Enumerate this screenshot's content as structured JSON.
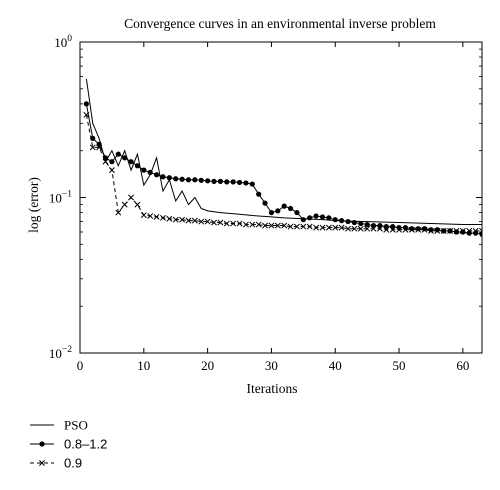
{
  "chart_data": {
    "type": "line",
    "title": "Convergence curves in an environmental inverse problem",
    "xlabel": "Iterations",
    "ylabel": "log (error)",
    "xlim": [
      0,
      63
    ],
    "ylim": [
      0.01,
      1.0
    ],
    "yscale": "log",
    "xticks": [
      0,
      10,
      20,
      30,
      40,
      50,
      60
    ],
    "xtick_labels": [
      "0",
      "10",
      "20",
      "30",
      "40",
      "50",
      "60"
    ],
    "yticks": [
      1,
      0.1,
      0.01
    ],
    "ytick_labels": [
      {
        "base": "10",
        "exp": "0"
      },
      {
        "base": "10",
        "exp": "−1"
      },
      {
        "base": "10",
        "exp": "−2"
      }
    ],
    "grid": false,
    "legend_position": "below-left",
    "series": [
      {
        "name": "PSO",
        "color": "#000000",
        "marker": "none",
        "dash": "solid",
        "x": [
          1,
          2,
          3,
          4,
          5,
          6,
          7,
          8,
          9,
          10,
          11,
          12,
          13,
          14,
          15,
          16,
          17,
          18,
          19,
          20,
          22,
          25,
          28,
          30,
          32,
          35,
          38,
          40,
          45,
          50,
          55,
          60,
          63
        ],
        "y": [
          0.58,
          0.3,
          0.24,
          0.17,
          0.2,
          0.16,
          0.2,
          0.15,
          0.19,
          0.12,
          0.14,
          0.18,
          0.11,
          0.13,
          0.095,
          0.11,
          0.09,
          0.1,
          0.085,
          0.082,
          0.08,
          0.078,
          0.076,
          0.075,
          0.074,
          0.073,
          0.072,
          0.071,
          0.07,
          0.069,
          0.068,
          0.067,
          0.067
        ]
      },
      {
        "name": "0.8–1.2",
        "color": "#000000",
        "marker": "circle",
        "dash": "solid",
        "x": [
          1,
          2,
          3,
          4,
          5,
          6,
          7,
          8,
          9,
          10,
          11,
          12,
          13,
          14,
          15,
          16,
          17,
          18,
          19,
          20,
          21,
          22,
          23,
          24,
          25,
          26,
          27,
          28,
          29,
          30,
          31,
          32,
          33,
          34,
          35,
          36,
          37,
          38,
          39,
          40,
          41,
          42,
          43,
          44,
          45,
          46,
          47,
          48,
          49,
          50,
          51,
          52,
          53,
          54,
          55,
          56,
          57,
          58,
          59,
          60,
          61,
          62,
          63
        ],
        "y": [
          0.4,
          0.24,
          0.22,
          0.18,
          0.17,
          0.19,
          0.18,
          0.17,
          0.16,
          0.15,
          0.145,
          0.14,
          0.136,
          0.134,
          0.132,
          0.131,
          0.13,
          0.13,
          0.129,
          0.128,
          0.127,
          0.127,
          0.126,
          0.126,
          0.125,
          0.124,
          0.122,
          0.105,
          0.092,
          0.08,
          0.082,
          0.088,
          0.085,
          0.08,
          0.072,
          0.074,
          0.076,
          0.075,
          0.074,
          0.072,
          0.071,
          0.07,
          0.069,
          0.068,
          0.067,
          0.066,
          0.066,
          0.065,
          0.065,
          0.064,
          0.064,
          0.063,
          0.063,
          0.063,
          0.062,
          0.062,
          0.061,
          0.061,
          0.06,
          0.06,
          0.059,
          0.059,
          0.058
        ]
      },
      {
        "name": "0.9",
        "color": "#000000",
        "marker": "x",
        "dash": "dashed",
        "x": [
          1,
          2,
          3,
          4,
          5,
          6,
          7,
          8,
          9,
          10,
          11,
          12,
          13,
          14,
          15,
          16,
          17,
          18,
          19,
          20,
          21,
          22,
          23,
          24,
          25,
          26,
          27,
          28,
          29,
          30,
          31,
          32,
          33,
          34,
          35,
          36,
          37,
          38,
          39,
          40,
          41,
          42,
          43,
          44,
          45,
          46,
          47,
          48,
          49,
          50,
          51,
          52,
          53,
          54,
          55,
          56,
          57,
          58,
          59,
          60,
          61,
          62,
          63
        ],
        "y": [
          0.34,
          0.21,
          0.21,
          0.17,
          0.15,
          0.08,
          0.09,
          0.1,
          0.09,
          0.077,
          0.076,
          0.075,
          0.074,
          0.073,
          0.072,
          0.072,
          0.071,
          0.071,
          0.07,
          0.07,
          0.069,
          0.069,
          0.068,
          0.068,
          0.068,
          0.067,
          0.067,
          0.067,
          0.066,
          0.066,
          0.066,
          0.066,
          0.065,
          0.065,
          0.065,
          0.065,
          0.064,
          0.064,
          0.064,
          0.064,
          0.064,
          0.063,
          0.063,
          0.063,
          0.063,
          0.063,
          0.063,
          0.062,
          0.062,
          0.062,
          0.062,
          0.062,
          0.062,
          0.062,
          0.061,
          0.061,
          0.061,
          0.061,
          0.061,
          0.061,
          0.061,
          0.061,
          0.061
        ]
      }
    ]
  }
}
